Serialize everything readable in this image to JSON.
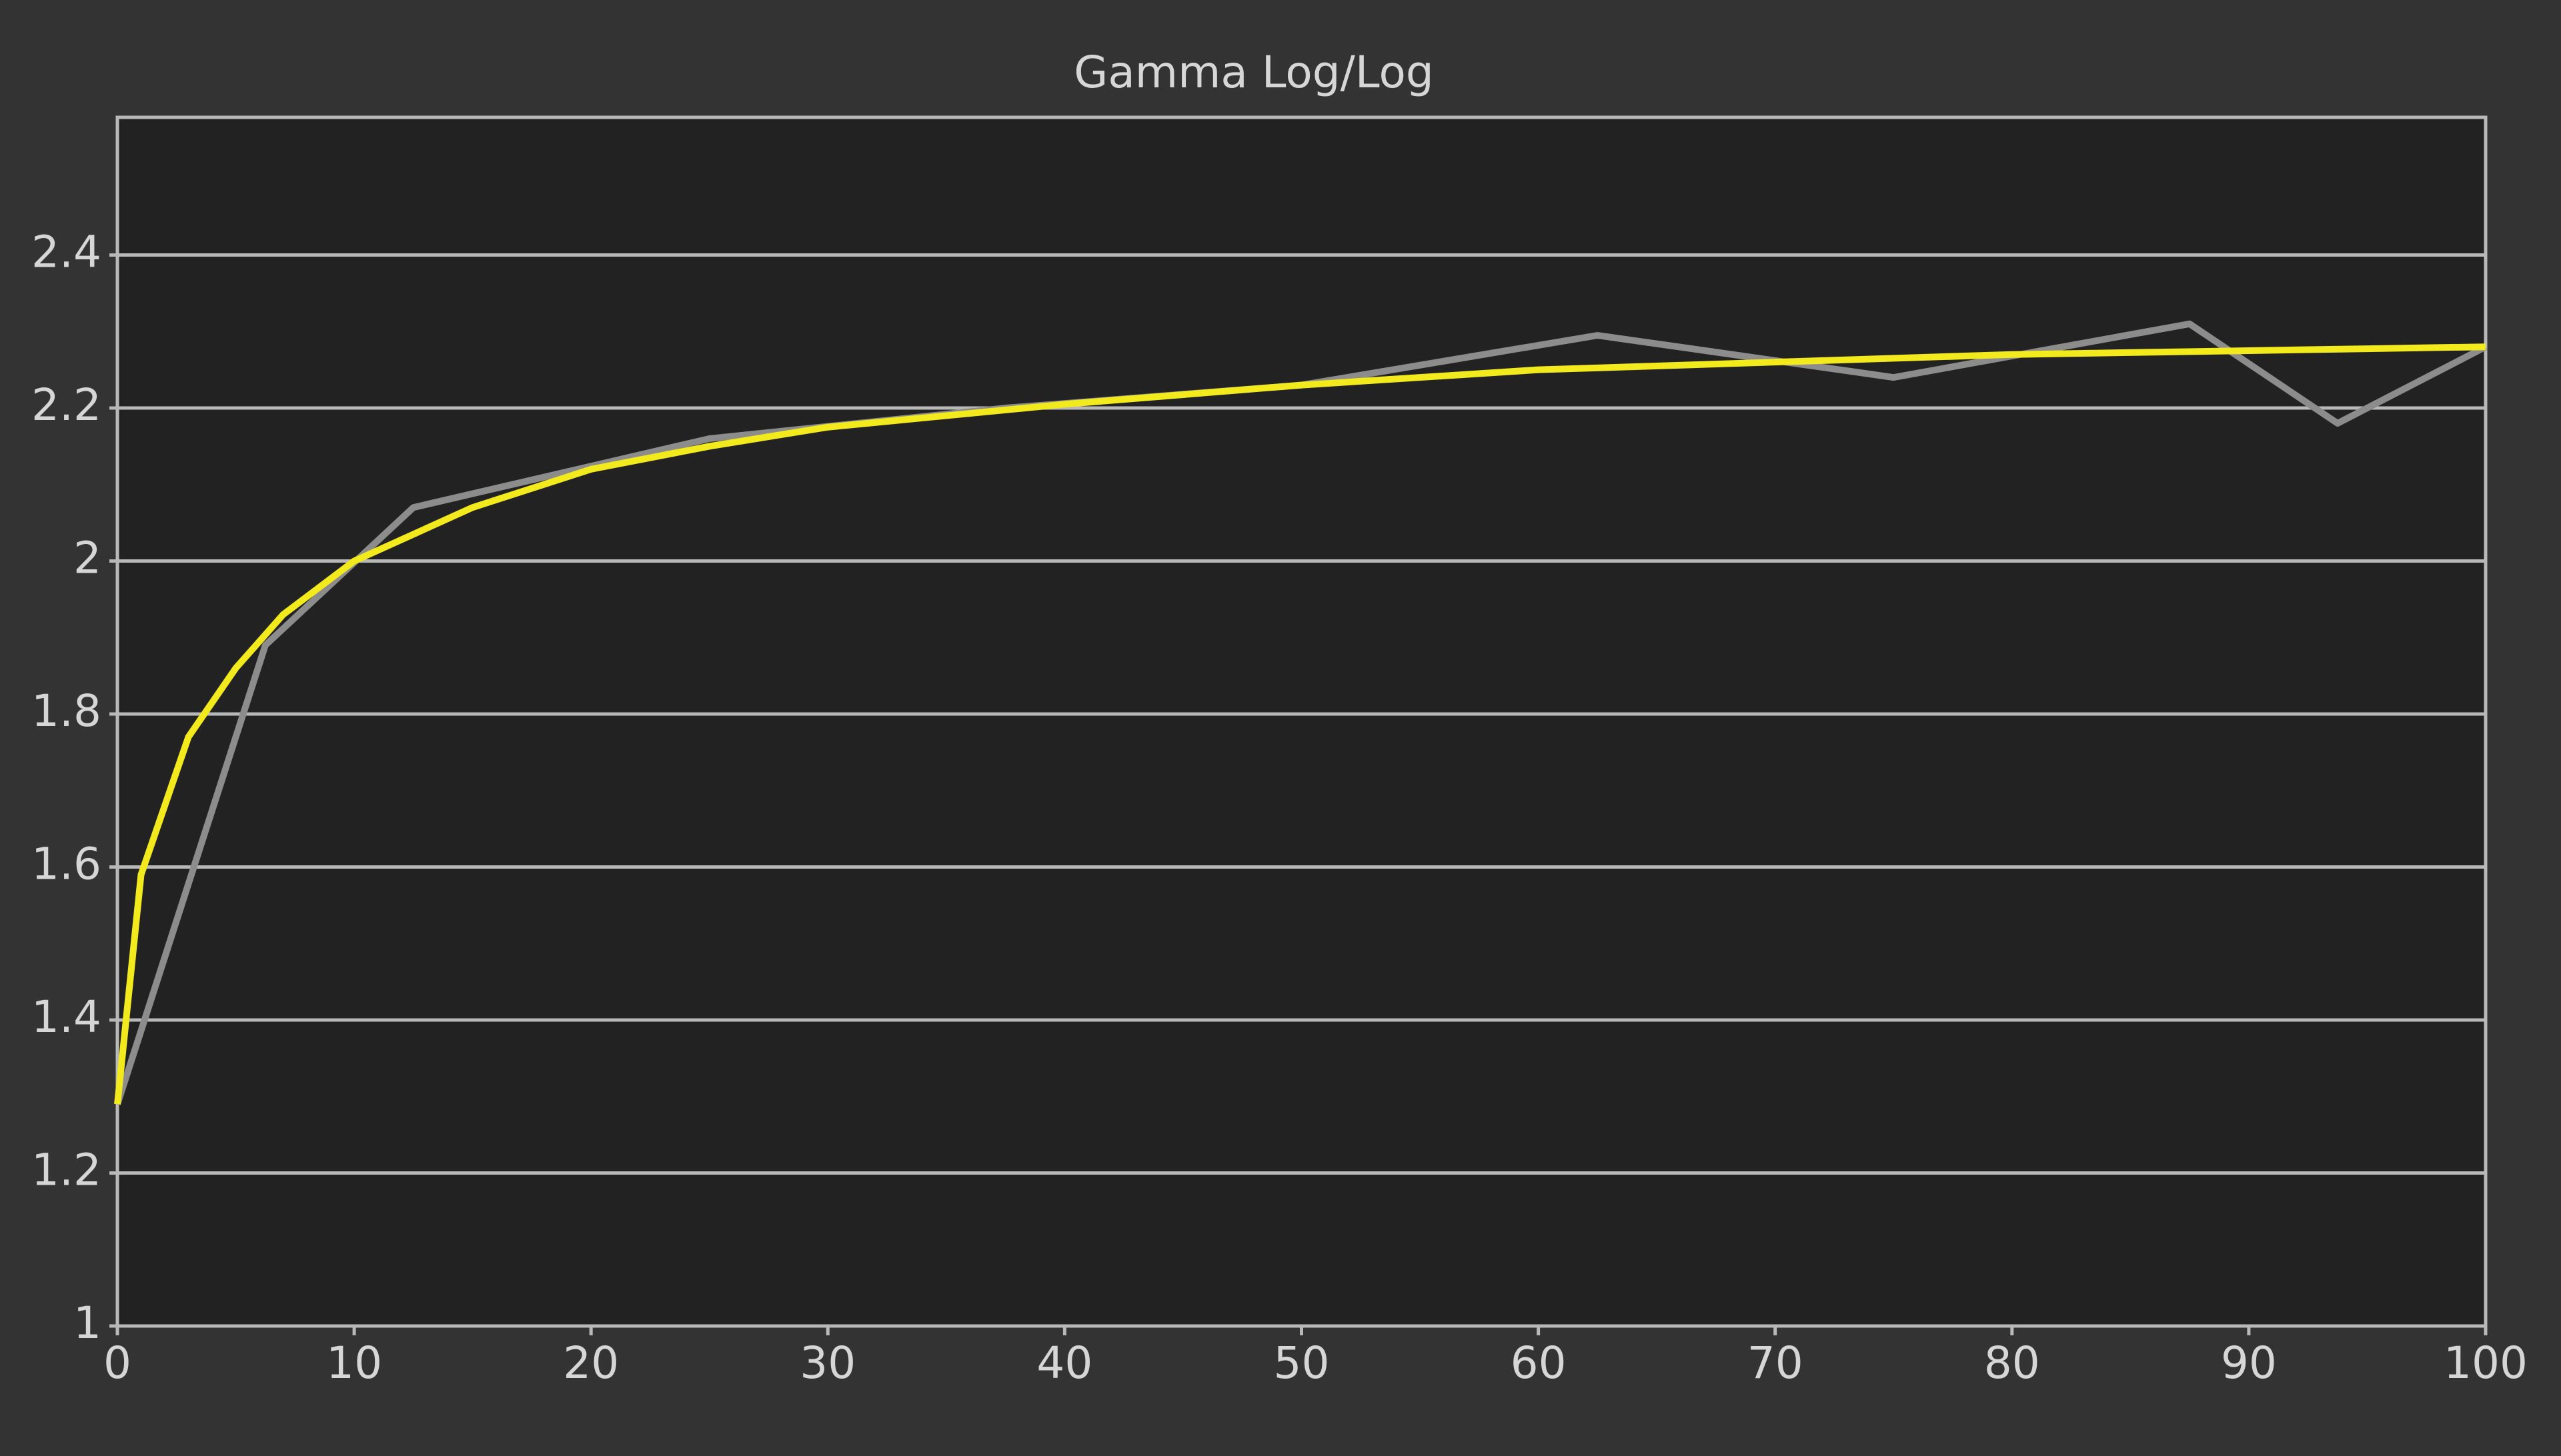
{
  "chart_data": {
    "type": "line",
    "title": "Gamma Log/Log",
    "xlim": [
      0,
      100
    ],
    "xticks": [
      0,
      10,
      20,
      30,
      40,
      50,
      60,
      70,
      80,
      90,
      100
    ],
    "ylim": [
      1,
      2.58
    ],
    "yticks": [
      1,
      1.2,
      1.4,
      1.6,
      1.8,
      2,
      2.2,
      2.4
    ],
    "grid": true,
    "series": [
      {
        "color": "#8c8c8c",
        "x": [
          0,
          6.25,
          12.5,
          25,
          37.5,
          50,
          62.5,
          75,
          87.5,
          93.75,
          100
        ],
        "values": [
          1.29,
          1.89,
          2.07,
          2.16,
          2.2,
          2.23,
          2.295,
          2.24,
          2.31,
          2.18,
          2.28
        ]
      },
      {
        "color": "#f2ea1c",
        "x": [
          0,
          1,
          3,
          5,
          7,
          10,
          15,
          20,
          25,
          30,
          40,
          50,
          60,
          70,
          80,
          90,
          100
        ],
        "values": [
          1.29,
          1.59,
          1.77,
          1.86,
          1.93,
          2.0,
          2.07,
          2.12,
          2.15,
          2.175,
          2.205,
          2.23,
          2.25,
          2.26,
          2.27,
          2.275,
          2.28
        ]
      }
    ]
  }
}
